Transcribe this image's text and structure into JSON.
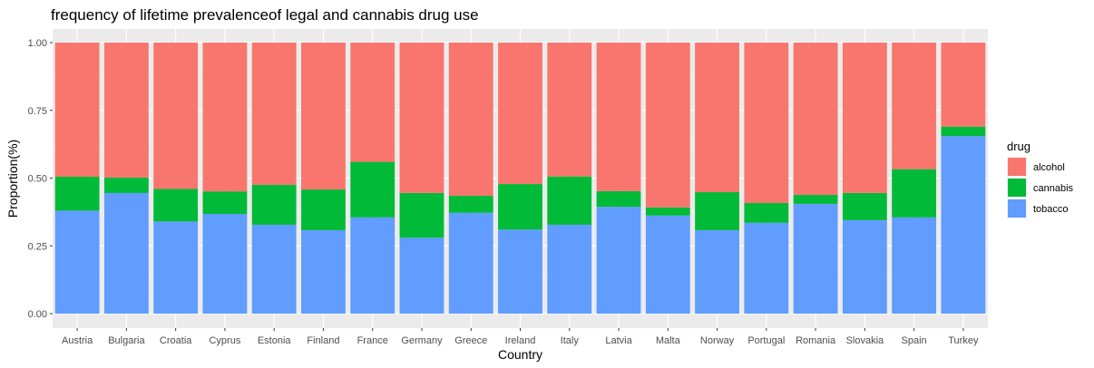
{
  "chart_data": {
    "type": "bar",
    "stacked": true,
    "title": "frequency of lifetime prevalenceof legal and cannabis drug use",
    "xlabel": "Country",
    "ylabel": "Proportion(%)",
    "ylim": [
      0,
      1
    ],
    "yticks": [
      "0.00",
      "0.25",
      "0.50",
      "0.75",
      "1.00"
    ],
    "ytick_values": [
      0,
      0.25,
      0.5,
      0.75,
      1.0
    ],
    "grid": true,
    "legend_title": "drug",
    "legend_position": "right",
    "categories": [
      "Austria",
      "Bulgaria",
      "Croatia",
      "Cyprus",
      "Estonia",
      "Finland",
      "France",
      "Germany",
      "Greece",
      "Ireland",
      "Italy",
      "Latvia",
      "Malta",
      "Norway",
      "Portugal",
      "Romania",
      "Slovakia",
      "Spain",
      "Turkey"
    ],
    "series": [
      {
        "name": "tobacco",
        "color": "#619CFF",
        "values": [
          0.38,
          0.445,
          0.34,
          0.368,
          0.328,
          0.308,
          0.355,
          0.28,
          0.372,
          0.31,
          0.328,
          0.394,
          0.362,
          0.308,
          0.335,
          0.405,
          0.345,
          0.355,
          0.655
        ]
      },
      {
        "name": "cannabis",
        "color": "#00BA38",
        "values": [
          0.125,
          0.057,
          0.12,
          0.083,
          0.147,
          0.15,
          0.205,
          0.165,
          0.063,
          0.168,
          0.178,
          0.058,
          0.03,
          0.14,
          0.073,
          0.033,
          0.1,
          0.178,
          0.035
        ]
      },
      {
        "name": "alcohol",
        "color": "#F8766D",
        "values": [
          0.495,
          0.498,
          0.54,
          0.549,
          0.525,
          0.542,
          0.44,
          0.555,
          0.565,
          0.522,
          0.494,
          0.548,
          0.608,
          0.552,
          0.592,
          0.562,
          0.555,
          0.467,
          0.31
        ]
      }
    ],
    "legend_order": [
      "alcohol",
      "cannabis",
      "tobacco"
    ]
  }
}
